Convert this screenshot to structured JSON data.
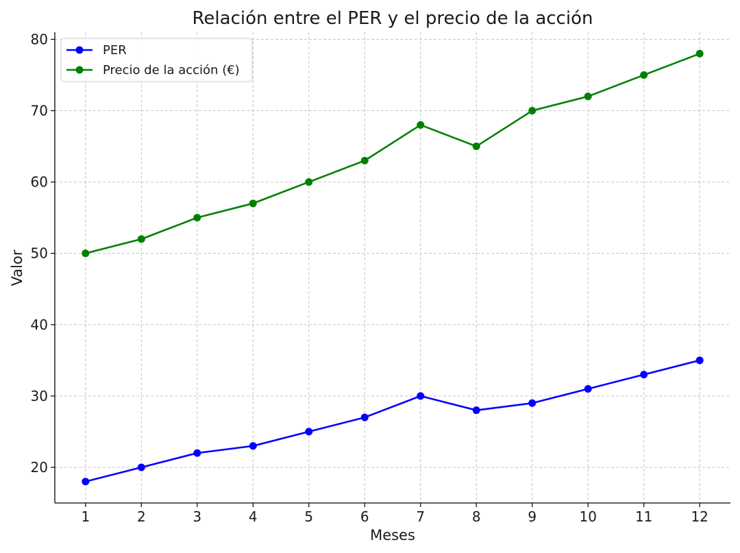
{
  "chart_data": {
    "type": "line",
    "title": "Relación entre el PER y el precio de la acción",
    "xlabel": "Meses",
    "ylabel": "Valor",
    "x": [
      1,
      2,
      3,
      4,
      5,
      6,
      7,
      8,
      9,
      10,
      11,
      12
    ],
    "xticks": [
      "1",
      "2",
      "3",
      "4",
      "5",
      "6",
      "7",
      "8",
      "9",
      "10",
      "11",
      "12"
    ],
    "yticks": [
      "20",
      "30",
      "40",
      "50",
      "60",
      "70",
      "80"
    ],
    "xlim": [
      0.45,
      12.55
    ],
    "ylim": [
      15,
      81
    ],
    "grid": true,
    "legend_position": "top-left",
    "series": [
      {
        "name": "PER",
        "color": "#0000ff",
        "marker": "circle",
        "values": [
          18,
          20,
          22,
          23,
          25,
          27,
          30,
          28,
          29,
          31,
          33,
          35
        ]
      },
      {
        "name": "Precio de la acción (€)",
        "color": "#008000",
        "marker": "circle",
        "values": [
          50,
          52,
          55,
          57,
          60,
          63,
          68,
          65,
          70,
          72,
          75,
          78
        ]
      }
    ]
  }
}
